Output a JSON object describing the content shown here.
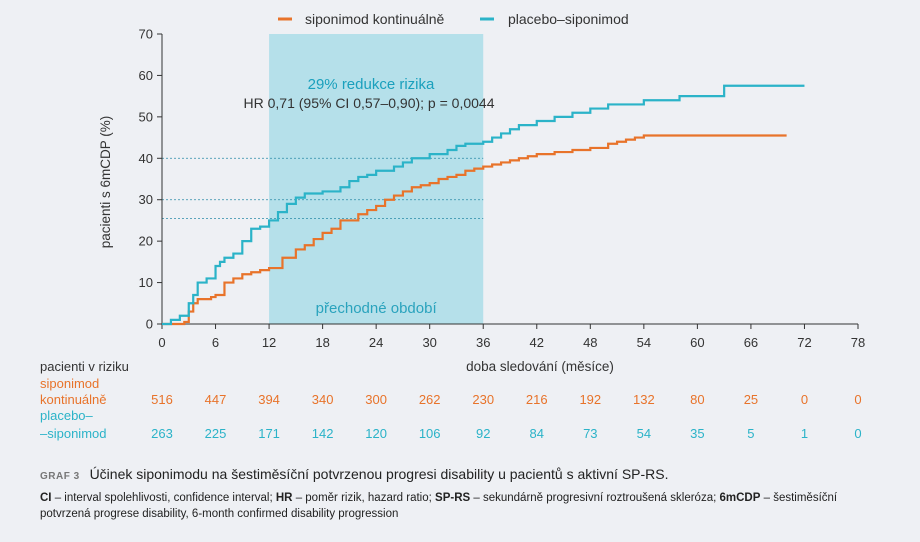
{
  "chart_data": {
    "type": "line",
    "subtype": "kaplan-meier step",
    "xlabel": "doba sledování (měsíce)",
    "ylabel": "pacienti s 6mCDP (%)",
    "xlim": [
      0,
      78
    ],
    "ylim": [
      0,
      70
    ],
    "xticks": [
      "0",
      "6",
      "12",
      "18",
      "24",
      "30",
      "36",
      "42",
      "48",
      "54",
      "60",
      "66",
      "72",
      "78"
    ],
    "yticks": [
      "0",
      "10",
      "20",
      "30",
      "40",
      "50",
      "60",
      "70"
    ],
    "legend_position": "top-center",
    "shaded_region": {
      "x_range": [
        12,
        36
      ],
      "label": "přechodné období",
      "color": "#b5e0ea"
    },
    "annotation_title": "29% redukce rizika",
    "annotation_text": "HR 0,71 (95% CI 0,57–0,90); p = 0,0044",
    "reference_levels": [
      25.5,
      30,
      40
    ],
    "series": [
      {
        "name": "siponimod kontinuálně",
        "color": "#e8732a",
        "x": [
          0,
          2.5,
          3.0,
          3.5,
          4.0,
          5.5,
          6.0,
          7.0,
          8.0,
          9.0,
          10.0,
          11.0,
          12.0,
          13.5,
          15.0,
          16.0,
          17.0,
          18.0,
          19.0,
          20.0,
          22.0,
          23.0,
          24.0,
          25.0,
          26.0,
          27.0,
          28.0,
          29.0,
          30.0,
          31.0,
          32.0,
          33.0,
          34.0,
          35.0,
          36.0,
          37.0,
          38.0,
          39.0,
          40.0,
          41.0,
          42.0,
          44.0,
          46.0,
          48.0,
          50.0,
          51.0,
          52.0,
          53.0,
          54.0,
          56.0,
          70.0
        ],
        "y": [
          0,
          0.5,
          3,
          5,
          6,
          6.5,
          7,
          10,
          11,
          12,
          12.5,
          13,
          13.5,
          16,
          18,
          19,
          20.5,
          22,
          23,
          25,
          26.5,
          27.5,
          28.5,
          30,
          31,
          32,
          33,
          33.5,
          34,
          35,
          35.5,
          36,
          37,
          37.5,
          38,
          38.5,
          39,
          39.5,
          40,
          40.5,
          41,
          41.5,
          42,
          42.5,
          43.5,
          44,
          44.5,
          45,
          45.5,
          45.5,
          45.5
        ]
      },
      {
        "name": "placebo–siponimod",
        "color": "#2bb3c8",
        "x": [
          0,
          1.0,
          2.0,
          3.0,
          3.5,
          4.0,
          5.0,
          6.0,
          6.5,
          7.0,
          8.0,
          9.0,
          10.0,
          11.0,
          12.0,
          13.0,
          14.0,
          15.0,
          16.0,
          18.0,
          20.0,
          21.0,
          22.0,
          23.0,
          24.0,
          26.0,
          27.0,
          28.0,
          30.0,
          32.0,
          33.0,
          34.0,
          36.0,
          37.0,
          38.0,
          39.0,
          40.0,
          42.0,
          44.0,
          46.0,
          48.0,
          50.0,
          54.0,
          58.0,
          63.0,
          72.0
        ],
        "y": [
          0,
          1,
          2,
          5,
          7,
          10,
          11,
          14,
          15,
          16,
          17,
          20,
          23,
          23.5,
          25,
          27,
          29,
          30.5,
          31.5,
          32,
          33,
          34.5,
          35.5,
          36,
          37,
          38,
          39,
          40,
          41,
          42,
          43,
          43.5,
          44,
          45,
          46,
          47,
          48,
          49,
          50,
          51,
          52,
          53,
          54,
          55,
          57.5,
          57.5
        ]
      }
    ]
  },
  "risk_table": {
    "header": "pacienti v riziku",
    "rows": [
      {
        "label_1": "siponimod",
        "label_2": "kontinuálně",
        "values": [
          "516",
          "447",
          "394",
          "340",
          "300",
          "262",
          "230",
          "216",
          "192",
          "132",
          "80",
          "25",
          "0",
          "0"
        ]
      },
      {
        "label_1": "placebo–",
        "label_2": "–siponimod",
        "values": [
          "263",
          "225",
          "171",
          "142",
          "120",
          "106",
          "92",
          "84",
          "73",
          "54",
          "35",
          "5",
          "1",
          "0"
        ]
      }
    ]
  },
  "caption": {
    "label": "GRAF 3",
    "title": "Účinek siponimodu na šestiměsíční potvrzenou progresi disability u pacientů s aktivní SP-RS.",
    "notes": [
      {
        "term": "CI",
        "def": " – interval spolehlivosti, confidence interval; "
      },
      {
        "term": "HR",
        "def": " – poměr rizik, hazard ratio; "
      },
      {
        "term": "SP-RS",
        "def": " – sekundárně progresivní roztroušená skleróza; "
      },
      {
        "term": "6mCDP",
        "def": " – šestiměsíční potvrzená progrese disability, 6-month confirmed disability progression"
      }
    ]
  }
}
